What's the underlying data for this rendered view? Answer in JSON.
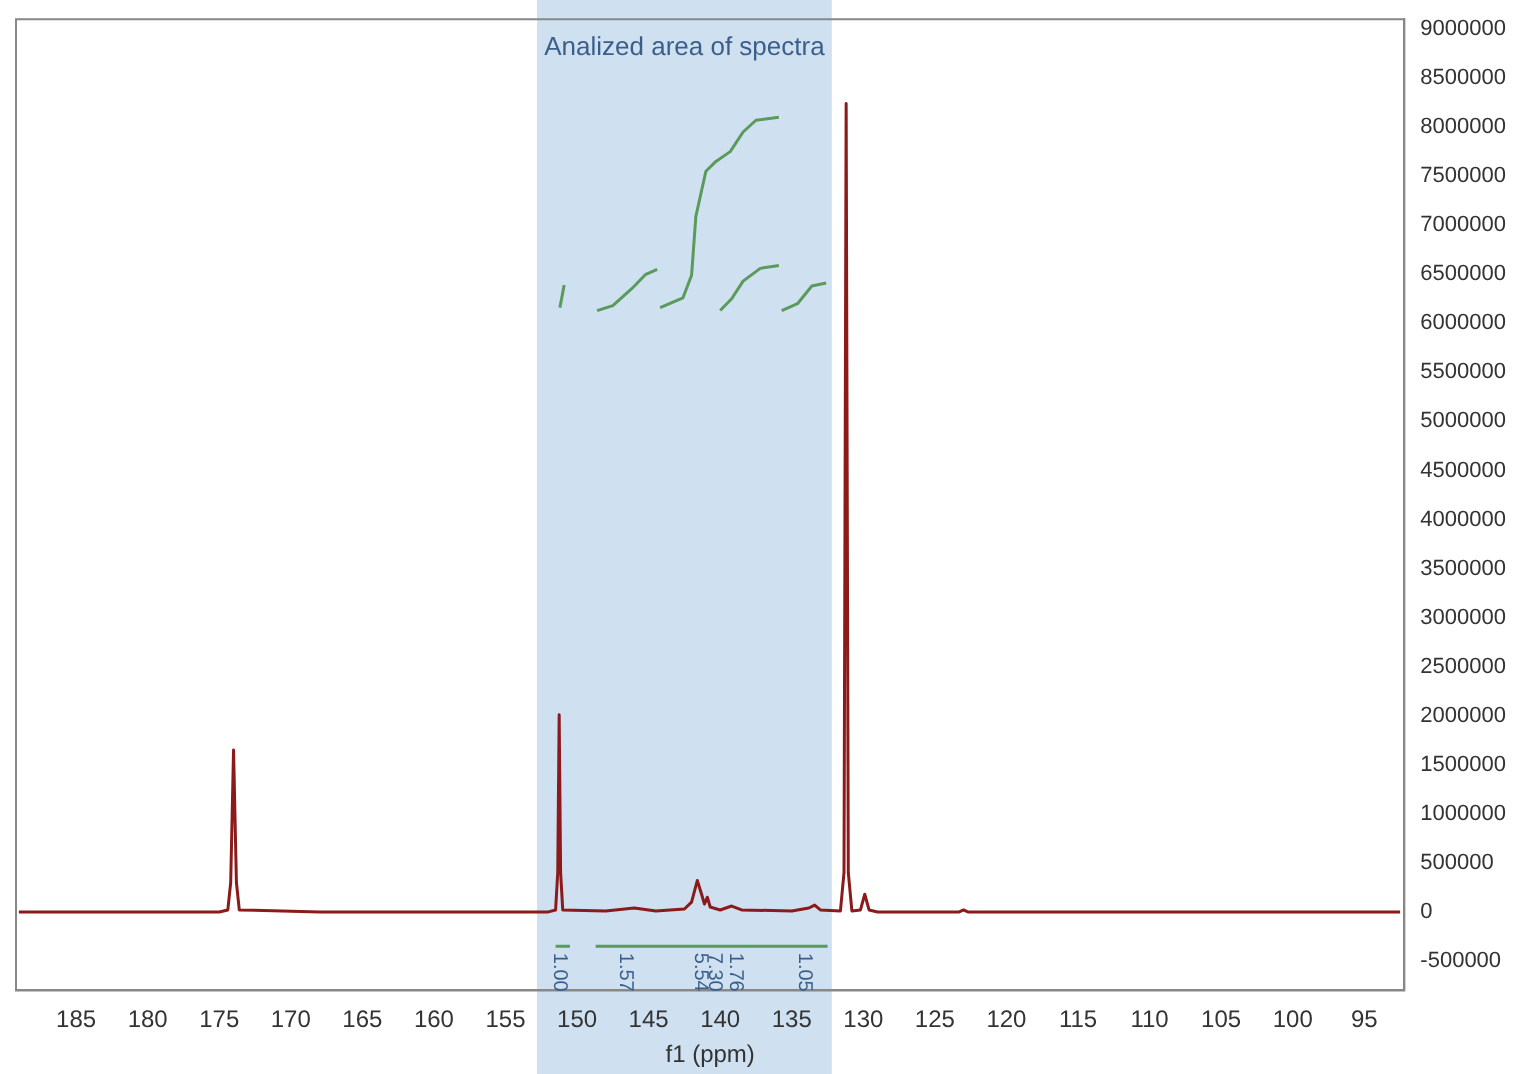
{
  "chart_data": {
    "type": "line",
    "xlabel": "f1 (ppm)",
    "marker": "none",
    "line_style": "solid",
    "legend": false,
    "grid": false,
    "xlim": [
      189.2,
      92.2
    ],
    "xticks": [
      185,
      180,
      175,
      170,
      165,
      160,
      155,
      150,
      145,
      140,
      135,
      130,
      125,
      120,
      115,
      110,
      105,
      100,
      95
    ],
    "ylim": [
      -800000,
      9100000
    ],
    "yticks": [
      -500000,
      0,
      500000,
      1000000,
      1500000,
      2000000,
      2500000,
      3000000,
      3500000,
      4000000,
      4500000,
      5000000,
      5500000,
      6000000,
      6500000,
      7000000,
      7500000,
      8000000,
      8500000,
      9000000
    ],
    "bands": [
      {
        "axis": "x",
        "from": 152.8,
        "to": 132.2,
        "label": "Analized area of spectra",
        "color": "#cfe0f1"
      }
    ],
    "series": [
      {
        "color": "#8b1a1a",
        "x": [
          189,
          175,
          174.4,
          174.2,
          174.0,
          173.8,
          173.6,
          168,
          152,
          151.5,
          151.35,
          151.25,
          151.15,
          151.0,
          148,
          146,
          144.5,
          142.5,
          142,
          141.6,
          141.3,
          141.1,
          140.9,
          140.7,
          140,
          139.2,
          138.5,
          135,
          133.8,
          133.4,
          133.0,
          131.6,
          131.35,
          131.2,
          131.05,
          130.8,
          130.2,
          129.9,
          129.6,
          129,
          123.3,
          123,
          122.7,
          92.5
        ],
        "values": [
          0,
          0,
          20000,
          300000,
          1650000,
          300000,
          20000,
          0,
          0,
          20000,
          400000,
          2010000,
          400000,
          20000,
          10000,
          40000,
          10000,
          30000,
          100000,
          320000,
          180000,
          80000,
          150000,
          50000,
          20000,
          60000,
          20000,
          10000,
          40000,
          70000,
          20000,
          10000,
          400000,
          8240000,
          400000,
          10000,
          20000,
          180000,
          20000,
          0,
          0,
          20000,
          0,
          0
        ]
      },
      {
        "color": "#5a9a5a",
        "x": [
          151.2,
          150.9
        ],
        "values": [
          6160000,
          6390000
        ]
      },
      {
        "color": "#5a9a5a",
        "x": [
          148.6,
          147.5,
          146.2,
          145.2,
          144.4
        ],
        "values": [
          6130000,
          6180000,
          6350000,
          6500000,
          6550000
        ]
      },
      {
        "color": "#5a9a5a",
        "x": [
          144.2,
          142.6,
          142.0,
          141.7,
          141.0,
          140.3,
          139.3,
          138.4,
          137.5,
          135.9
        ],
        "values": [
          6160000,
          6260000,
          6490000,
          7090000,
          7550000,
          7650000,
          7750000,
          7950000,
          8070000,
          8100000
        ]
      },
      {
        "color": "#5a9a5a",
        "x": [
          140.0,
          139.2,
          138.4,
          137.2,
          135.9
        ],
        "values": [
          6130000,
          6250000,
          6430000,
          6560000,
          6590000
        ]
      },
      {
        "color": "#5a9a5a",
        "x": [
          135.7,
          134.6,
          133.6,
          132.6
        ],
        "values": [
          6130000,
          6200000,
          6380000,
          6410000
        ]
      },
      {
        "color": "#5a9a5a",
        "x": [
          151.5,
          150.5,
          150.4,
          148.7,
          144.2,
          140.0,
          135.7,
          132.5
        ],
        "values": [
          -350000,
          -350000,
          null,
          -350000,
          -350000,
          -350000,
          -350000,
          -350000
        ]
      }
    ],
    "annotations": [
      {
        "text": "1.00",
        "x": 151.2,
        "y": -350000
      },
      {
        "text": "1.57",
        "x": 146.6,
        "y": -350000
      },
      {
        "text": "5.54",
        "x": 141.4,
        "y": -350000
      },
      {
        "text": "7.30",
        "x": 140.4,
        "y": -350000
      },
      {
        "text": "1.76",
        "x": 138.9,
        "y": -350000
      },
      {
        "text": "1.05",
        "x": 134.1,
        "y": -350000
      }
    ]
  }
}
